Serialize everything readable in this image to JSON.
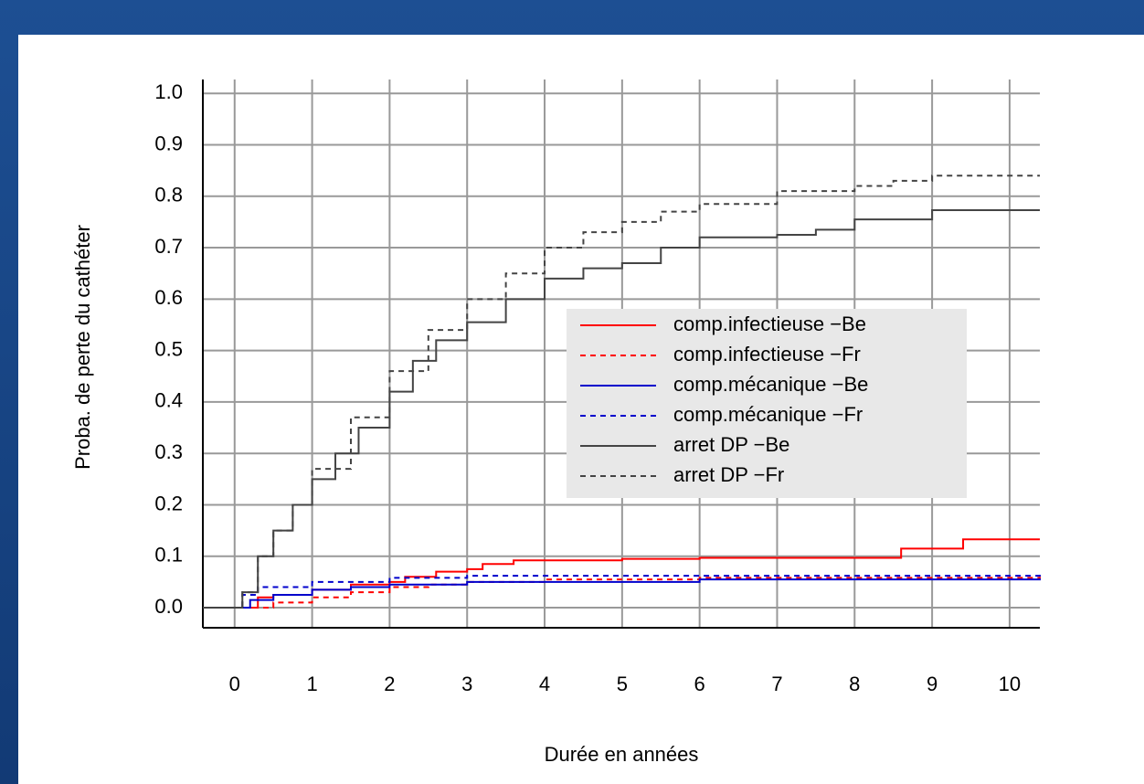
{
  "chart_data": {
    "type": "line",
    "step": true,
    "xlabel": "Durée en années",
    "ylabel": "Proba. de perte du cathéter",
    "xlim": [
      -0.41,
      10.39
    ],
    "ylim": [
      -0.039,
      1.027
    ],
    "xticks": [
      0,
      1,
      2,
      3,
      4,
      5,
      6,
      7,
      8,
      9,
      10
    ],
    "yticks": [
      {
        "value": 0,
        "label": "0.0"
      },
      0.1,
      0.2,
      0.3,
      0.4,
      0.5,
      0.6,
      0.7,
      0.8,
      0.9,
      {
        "value": 1,
        "label": "1.0"
      }
    ],
    "grid": true,
    "legend": "right",
    "series": [
      {
        "name": "comp.infectieuse −Be",
        "color": "#ff0000",
        "linestyle": "solid",
        "x": [
          -0.41,
          0,
          0.3,
          0.5,
          1,
          1.5,
          2,
          2.2,
          2.6,
          3,
          3.2,
          3.6,
          5,
          6,
          8.6,
          9.4,
          10.39
        ],
        "values": [
          0,
          0,
          0.02,
          0.025,
          0.035,
          0.045,
          0.05,
          0.06,
          0.07,
          0.075,
          0.085,
          0.092,
          0.095,
          0.097,
          0.115,
          0.133,
          0.133
        ]
      },
      {
        "name": "comp.infectieuse −Fr",
        "color": "#ff0000",
        "linestyle": "dashed",
        "x": [
          -0.41,
          0,
          0.5,
          1,
          1.5,
          2,
          2.5,
          3,
          4,
          6,
          10.39
        ],
        "values": [
          0,
          0,
          0.01,
          0.02,
          0.03,
          0.04,
          0.045,
          0.05,
          0.055,
          0.058,
          0.06
        ]
      },
      {
        "name": "comp.mécanique −Be",
        "color": "#0000cc",
        "linestyle": "solid",
        "x": [
          -0.41,
          0,
          0.2,
          0.5,
          1,
          1.5,
          2,
          3,
          6,
          10.39
        ],
        "values": [
          0,
          0,
          0.015,
          0.025,
          0.035,
          0.04,
          0.045,
          0.05,
          0.055,
          0.057
        ]
      },
      {
        "name": "comp.mécanique −Fr",
        "color": "#0000cc",
        "linestyle": "dashed",
        "x": [
          -0.41,
          0,
          0.1,
          0.3,
          1,
          2,
          3,
          10.39
        ],
        "values": [
          0,
          0,
          0.025,
          0.04,
          0.05,
          0.058,
          0.062,
          0.065
        ]
      },
      {
        "name": "arret DP −Be",
        "color": "#444444",
        "linestyle": "solid",
        "x": [
          -0.41,
          0,
          0.1,
          0.3,
          0.5,
          0.75,
          1,
          1.3,
          1.6,
          2,
          2.3,
          2.6,
          3,
          3.5,
          4,
          4.5,
          5,
          5.5,
          6,
          7,
          7.5,
          8,
          9,
          10.39
        ],
        "values": [
          0,
          0,
          0.03,
          0.1,
          0.15,
          0.2,
          0.25,
          0.3,
          0.35,
          0.42,
          0.48,
          0.52,
          0.555,
          0.6,
          0.64,
          0.66,
          0.67,
          0.7,
          0.72,
          0.725,
          0.735,
          0.755,
          0.773,
          0.773
        ]
      },
      {
        "name": "arret DP −Fr",
        "color": "#444444",
        "linestyle": "dashed",
        "x": [
          -0.41,
          0,
          0.1,
          0.3,
          0.5,
          0.75,
          1,
          1.5,
          2,
          2.5,
          3,
          3.5,
          4,
          4.5,
          5,
          5.5,
          6,
          7,
          8,
          8.5,
          9,
          10.39
        ],
        "values": [
          0,
          0,
          0.03,
          0.1,
          0.15,
          0.2,
          0.27,
          0.37,
          0.46,
          0.54,
          0.6,
          0.65,
          0.7,
          0.73,
          0.75,
          0.77,
          0.785,
          0.81,
          0.82,
          0.83,
          0.84,
          0.84
        ]
      }
    ]
  }
}
